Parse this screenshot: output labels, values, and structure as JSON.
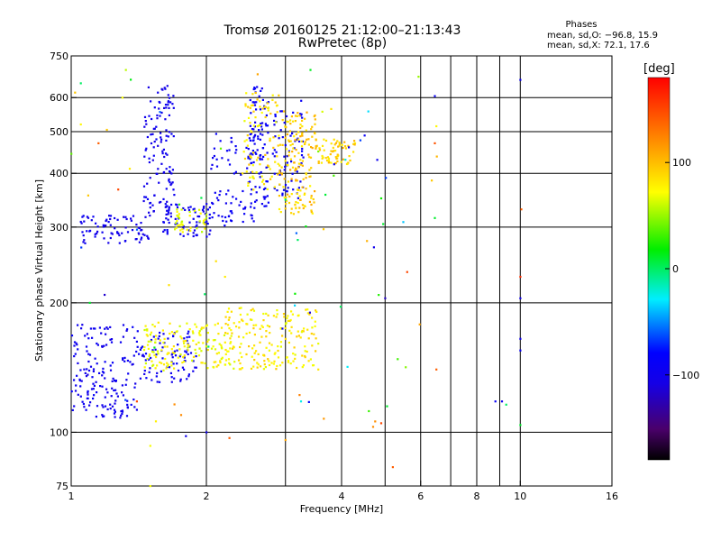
{
  "title": {
    "line1": "Tromsø 20160125 21:12:00–21:13:43",
    "line2": "RwPretec (8p)"
  },
  "phases_box": {
    "title": "Phases",
    "stats_o": "mean, sd,O: −96.8, 15.9",
    "stats_x": "mean, sd,X:  72.1, 17.6"
  },
  "colorbar": {
    "unit": "[deg]",
    "range": [
      -180,
      180
    ],
    "ticks": [
      {
        "value": 100,
        "label": "100"
      },
      {
        "value": 0,
        "label": "0"
      },
      {
        "value": -100,
        "label": "−100"
      }
    ]
  },
  "chart_data": {
    "type": "scatter",
    "xlabel": "Frequency [MHz]",
    "ylabel": "Stationary phase Virtual Height [km]",
    "xscale": "log",
    "yscale": "log",
    "xlim": [
      1,
      16
    ],
    "ylim": [
      75,
      750
    ],
    "x_ticks": [
      {
        "value": 1,
        "label": "1"
      },
      {
        "value": 2,
        "label": "2"
      },
      {
        "value": 4,
        "label": "4"
      },
      {
        "value": 6,
        "label": "6"
      },
      {
        "value": 8,
        "label": "8"
      },
      {
        "value": 10,
        "label": "10"
      },
      {
        "value": 16,
        "label": "16"
      }
    ],
    "x_gridlines": [
      2,
      3,
      4,
      5,
      6,
      7,
      8,
      9,
      10
    ],
    "y_ticks": [
      {
        "value": 75,
        "label": "75"
      },
      {
        "value": 100,
        "label": "100"
      },
      {
        "value": 200,
        "label": "200"
      },
      {
        "value": 300,
        "label": "300"
      },
      {
        "value": 400,
        "label": "400"
      },
      {
        "value": 500,
        "label": "500"
      },
      {
        "value": 600,
        "label": "600"
      },
      {
        "value": 750,
        "label": "750"
      }
    ],
    "y_gridlines": [
      100,
      200,
      300,
      400,
      500,
      600
    ],
    "grid": true,
    "color_by": "phase [deg]",
    "clusters": [
      {
        "note": "E-region O-mode trace",
        "x": [
          1.0,
          1.4
        ],
        "y": [
          108,
          178
        ],
        "phase": [
          -108,
          -88
        ],
        "n": 170
      },
      {
        "note": "E-region O-mode trace",
        "x": [
          1.4,
          1.9
        ],
        "y": [
          130,
          172
        ],
        "phase": [
          -105,
          -85
        ],
        "n": 90
      },
      {
        "note": "E-region X-mode trace",
        "x": [
          1.45,
          2.3
        ],
        "y": [
          140,
          180
        ],
        "phase": [
          60,
          85
        ],
        "n": 160
      },
      {
        "note": "E-region X-mode trace",
        "x": [
          2.2,
          3.55
        ],
        "y": [
          140,
          195
        ],
        "phase": [
          65,
          95
        ],
        "n": 190
      },
      {
        "note": "F-region O-mode trace",
        "x": [
          1.05,
          1.5
        ],
        "y": [
          275,
          320
        ],
        "phase": [
          -110,
          -90
        ],
        "n": 80
      },
      {
        "note": "F-region O-mode trace",
        "x": [
          1.45,
          1.7
        ],
        "y": [
          320,
          640
        ],
        "phase": [
          -110,
          -90
        ],
        "n": 120
      },
      {
        "note": "F-region O-mode trace",
        "x": [
          1.6,
          2.05
        ],
        "y": [
          285,
          340
        ],
        "phase": [
          -105,
          -85
        ],
        "n": 70
      },
      {
        "note": "F-region O-mode trace",
        "x": [
          2.05,
          2.6
        ],
        "y": [
          300,
          500
        ],
        "phase": [
          -100,
          -85
        ],
        "n": 80
      },
      {
        "note": "F-region O-mode trace",
        "x": [
          2.5,
          2.75
        ],
        "y": [
          330,
          640
        ],
        "phase": [
          -100,
          -80
        ],
        "n": 90
      },
      {
        "note": "F-region O-mode trace",
        "x": [
          2.8,
          3.3
        ],
        "y": [
          350,
          560
        ],
        "phase": [
          -100,
          -85
        ],
        "n": 70
      },
      {
        "note": "F-region X-mode trace",
        "x": [
          1.7,
          2.0
        ],
        "y": [
          290,
          330
        ],
        "phase": [
          55,
          80
        ],
        "n": 40
      },
      {
        "note": "F-region X-mode trace",
        "x": [
          2.4,
          2.9
        ],
        "y": [
          360,
          620
        ],
        "phase": [
          65,
          100
        ],
        "n": 90
      },
      {
        "note": "F-region X-mode trace",
        "x": [
          2.9,
          3.5
        ],
        "y": [
          320,
          560
        ],
        "phase": [
          75,
          110
        ],
        "n": 160
      },
      {
        "note": "F-region X-mode trace",
        "x": [
          3.5,
          4.3
        ],
        "y": [
          420,
          480
        ],
        "phase": [
          75,
          105
        ],
        "n": 70
      },
      {
        "note": "scattered echoes",
        "x": [
          1.0,
          6.6
        ],
        "y": [
          100,
          700
        ],
        "phase": [
          -120,
          150
        ],
        "n": 55
      }
    ],
    "points": [
      {
        "x": 1.05,
        "y": 648,
        "phase": 0
      },
      {
        "x": 1.3,
        "y": 600,
        "phase": 70
      },
      {
        "x": 1.05,
        "y": 520,
        "phase": 75
      },
      {
        "x": 1.2,
        "y": 505,
        "phase": 95
      },
      {
        "x": 1.15,
        "y": 470,
        "phase": 140
      },
      {
        "x": 1.35,
        "y": 410,
        "phase": 80
      },
      {
        "x": 1.1,
        "y": 200,
        "phase": 10
      },
      {
        "x": 1.65,
        "y": 220,
        "phase": 85
      },
      {
        "x": 1.5,
        "y": 93,
        "phase": 70
      },
      {
        "x": 1.5,
        "y": 75,
        "phase": 70
      },
      {
        "x": 1.4,
        "y": 118,
        "phase": 150
      },
      {
        "x": 1.8,
        "y": 98,
        "phase": -100
      },
      {
        "x": 2.0,
        "y": 100,
        "phase": -100
      },
      {
        "x": 2.05,
        "y": 410,
        "phase": -100
      },
      {
        "x": 2.25,
        "y": 97,
        "phase": 140
      },
      {
        "x": 2.2,
        "y": 230,
        "phase": 80
      },
      {
        "x": 2.1,
        "y": 250,
        "phase": 85
      },
      {
        "x": 2.6,
        "y": 680,
        "phase": 110
      },
      {
        "x": 3.0,
        "y": 96,
        "phase": 110
      },
      {
        "x": 3.15,
        "y": 210,
        "phase": 20
      },
      {
        "x": 3.25,
        "y": 590,
        "phase": -90
      },
      {
        "x": 3.85,
        "y": 420,
        "phase": -100
      },
      {
        "x": 4.15,
        "y": 460,
        "phase": -95
      },
      {
        "x": 4.5,
        "y": 490,
        "phase": -90
      },
      {
        "x": 4.8,
        "y": 430,
        "phase": -95
      },
      {
        "x": 4.9,
        "y": 350,
        "phase": 20
      },
      {
        "x": 4.95,
        "y": 305,
        "phase": 10
      },
      {
        "x": 5.0,
        "y": 205,
        "phase": -120
      },
      {
        "x": 5.05,
        "y": 115,
        "phase": 10
      },
      {
        "x": 4.9,
        "y": 105,
        "phase": 150
      },
      {
        "x": 4.75,
        "y": 106,
        "phase": 120
      },
      {
        "x": 4.7,
        "y": 103,
        "phase": 120
      },
      {
        "x": 4.6,
        "y": 112,
        "phase": 30
      },
      {
        "x": 5.2,
        "y": 83,
        "phase": 140
      },
      {
        "x": 6.45,
        "y": 605,
        "phase": -90
      },
      {
        "x": 6.5,
        "y": 515,
        "phase": 75
      },
      {
        "x": 6.45,
        "y": 470,
        "phase": 145
      },
      {
        "x": 6.45,
        "y": 315,
        "phase": 10
      },
      {
        "x": 6.5,
        "y": 140,
        "phase": 140
      },
      {
        "x": 6.35,
        "y": 385,
        "phase": 95
      },
      {
        "x": 8.8,
        "y": 118,
        "phase": -90
      },
      {
        "x": 9.1,
        "y": 118,
        "phase": -95
      },
      {
        "x": 9.3,
        "y": 116,
        "phase": 0
      },
      {
        "x": 10.0,
        "y": 660,
        "phase": -95
      },
      {
        "x": 10.05,
        "y": 330,
        "phase": 140
      },
      {
        "x": 10.0,
        "y": 230,
        "phase": 160
      },
      {
        "x": 10.0,
        "y": 205,
        "phase": -100
      },
      {
        "x": 10.0,
        "y": 165,
        "phase": -100
      },
      {
        "x": 10.0,
        "y": 155,
        "phase": -90
      },
      {
        "x": 10.0,
        "y": 104,
        "phase": 10
      }
    ]
  }
}
